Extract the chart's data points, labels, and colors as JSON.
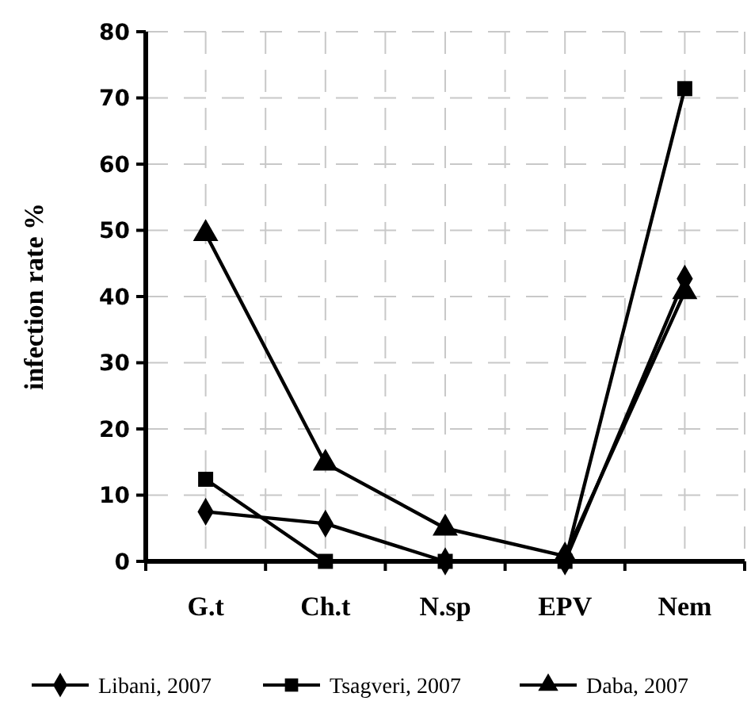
{
  "chart_data": {
    "type": "line",
    "ylabel": "infection rate  %",
    "categories": [
      "G.t",
      "Ch.t",
      "N.sp",
      "EPV",
      "Nem"
    ],
    "series": [
      {
        "name": "Libani, 2007",
        "color": "#000000",
        "marker": "diamond",
        "values": [
          7.5,
          5.7,
          0,
          0,
          42.7
        ]
      },
      {
        "name": "Tsagveri, 2007",
        "color": "#000000",
        "marker": "square",
        "values": [
          12.4,
          0,
          0,
          0,
          71.4
        ]
      },
      {
        "name": "Daba, 2007",
        "color": "#000000",
        "marker": "triangle",
        "values": [
          49.5,
          14.8,
          5,
          0.8,
          40.7
        ]
      }
    ],
    "ylim": [
      0,
      80
    ],
    "yticks": [
      0,
      10,
      20,
      30,
      40,
      50,
      60,
      70,
      80
    ],
    "grid": true,
    "legend": "bottom",
    "line_style": "solid"
  }
}
